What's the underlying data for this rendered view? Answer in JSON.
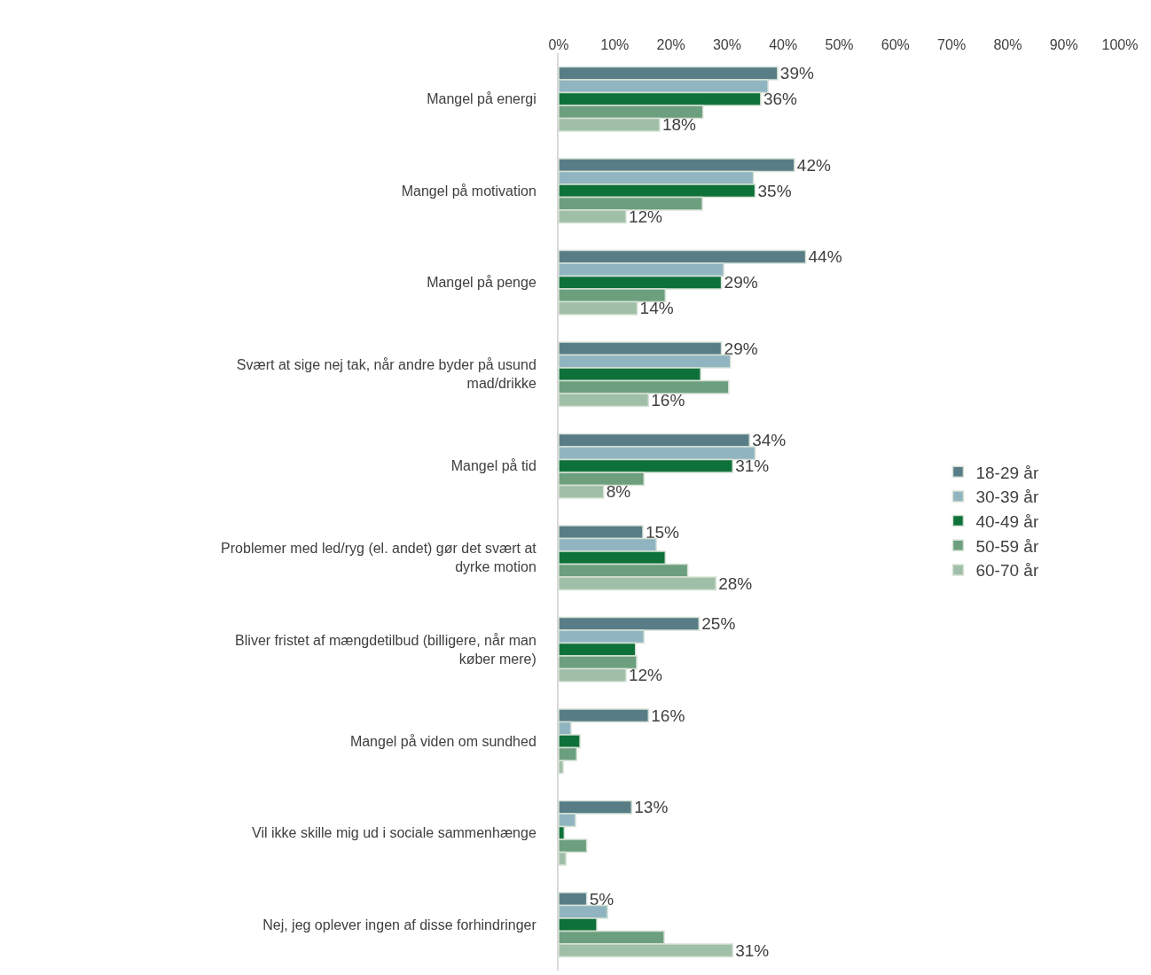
{
  "chart_data": {
    "type": "bar",
    "orientation": "horizontal",
    "categories": [
      "Mangel på energi",
      "Mangel på motivation",
      "Mangel på penge",
      "Svært at sige nej tak, når andre byder på usund mad/drikke",
      "Mangel på tid",
      "Problemer med led/ryg (el. andet) gør det svært at dyrke motion",
      "Bliver fristet af mængdetilbud (billigere, når man køber mere)",
      "Mangel på viden om sundhed",
      "Vil ikke skille mig ud i sociale sammenhænge",
      "Nej, jeg oplever ingen af disse forhindringer"
    ],
    "series": [
      {
        "name": "18-29 år",
        "color": "#587d87",
        "values": [
          39,
          42,
          44,
          29,
          34,
          15,
          25,
          16,
          13,
          5
        ],
        "value_labels": [
          "39%",
          "42%",
          "44%",
          "29%",
          "34%",
          "15%",
          "25%",
          "16%",
          "13%",
          "5%"
        ]
      },
      {
        "name": "30-39 år",
        "color": "#90b5c1",
        "values": [
          37.3,
          34.7,
          29.4,
          30.6,
          35,
          17.4,
          15.2,
          2.2,
          3,
          8.7
        ],
        "value_labels": [
          null,
          null,
          null,
          null,
          null,
          null,
          null,
          null,
          null,
          null
        ]
      },
      {
        "name": "40-49 år",
        "color": "#0f713a",
        "values": [
          36,
          35,
          29,
          25.3,
          31,
          19,
          13.7,
          3.8,
          1,
          6.8
        ],
        "value_labels": [
          "36%",
          "35%",
          "29%",
          null,
          "31%",
          null,
          null,
          null,
          null,
          null
        ]
      },
      {
        "name": "50-59 år",
        "color": "#6c9f7e",
        "values": [
          25.7,
          25.6,
          19,
          30.3,
          15.2,
          23,
          13.9,
          3.2,
          5,
          18.8
        ],
        "value_labels": [
          null,
          null,
          null,
          null,
          null,
          null,
          null,
          null,
          null,
          null
        ]
      },
      {
        "name": "60-70 år",
        "color": "#a0bfa8",
        "values": [
          18,
          12,
          14,
          16,
          8,
          28,
          12,
          0.8,
          1.3,
          31
        ],
        "value_labels": [
          "18%",
          "12%",
          "14%",
          "16%",
          "8%",
          "28%",
          "12%",
          null,
          null,
          "31%"
        ]
      }
    ],
    "xlim": [
      0,
      100
    ],
    "xticks": [
      {
        "value": 0,
        "label": "0%"
      },
      {
        "value": 10,
        "label": "10%"
      },
      {
        "value": 20,
        "label": "20%"
      },
      {
        "value": 30,
        "label": "30%"
      },
      {
        "value": 40,
        "label": "40%"
      },
      {
        "value": 50,
        "label": "50%"
      },
      {
        "value": 60,
        "label": "60%"
      },
      {
        "value": 70,
        "label": "70%"
      },
      {
        "value": 80,
        "label": "80%"
      },
      {
        "value": 90,
        "label": "90%"
      },
      {
        "value": 100,
        "label": "100%"
      }
    ],
    "grid": false,
    "legend": "right"
  }
}
